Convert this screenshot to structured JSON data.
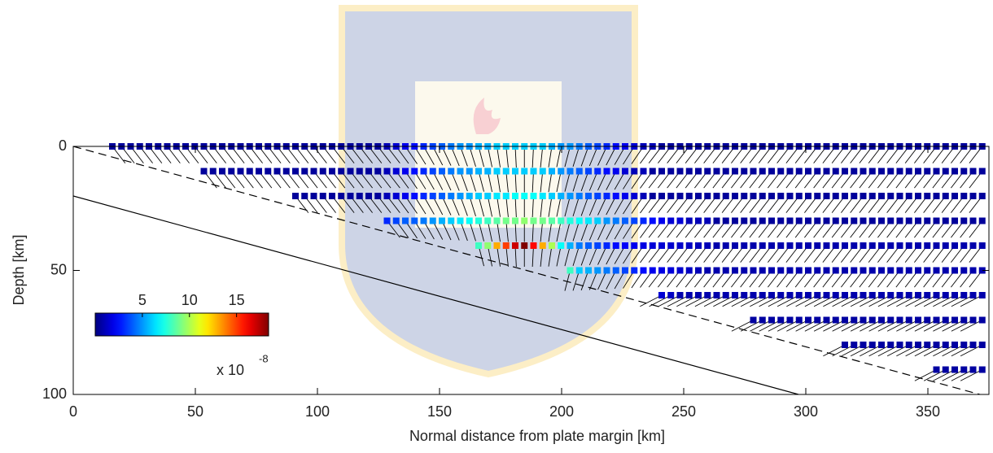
{
  "chart_data": {
    "type": "scatter",
    "xlabel": "Normal distance from plate margin [km]",
    "ylabel": "Depth [km]",
    "xlim": [
      0,
      375
    ],
    "ylim": [
      0,
      100
    ],
    "xticks": [
      0,
      50,
      100,
      150,
      200,
      250,
      300,
      350
    ],
    "yticks": [
      0,
      50,
      100
    ],
    "clim": [
      0,
      18.4
    ],
    "colorbar_ticks": [
      5,
      10,
      15
    ],
    "colorbar_label": "x 10",
    "colorbar_exponent": "-8",
    "lines": [
      {
        "style": "dashed",
        "x": [
          0,
          375
        ],
        "y": [
          0,
          101
        ]
      },
      {
        "style": "solid",
        "x": [
          0,
          297
        ],
        "y": [
          20,
          100
        ]
      }
    ],
    "rows": [
      {
        "depth": 0,
        "x0": 16,
        "dx": 3.75,
        "values": [
          0.5,
          0.5,
          0.5,
          0.5,
          0.5,
          0.5,
          0.5,
          0.5,
          0.5,
          0.5,
          0.5,
          0.5,
          0.5,
          0.5,
          0.5,
          0.5,
          0.5,
          0.5,
          0.5,
          0.5,
          0.5,
          0.5,
          0.5,
          0.5,
          0.5,
          0.5,
          0.5,
          0.5,
          0.5,
          0.5,
          1,
          1.5,
          2,
          2.5,
          3,
          3.5,
          4,
          4.5,
          5,
          5,
          5.5,
          5.5,
          6,
          6,
          6,
          6,
          6,
          6,
          5.5,
          5,
          5,
          4.5,
          4,
          3.5,
          3,
          2.5,
          2,
          1.5,
          1,
          1,
          0.5,
          0.5,
          0.5,
          0.5,
          0.5,
          0.5,
          0.5,
          0.5,
          0.5,
          0.5,
          0.5,
          0.5,
          0.5,
          0.5,
          0.5,
          0.5,
          0.5,
          0.5,
          0.5,
          0.5,
          0.5,
          0.5,
          0.5,
          0.5,
          0.5,
          0.5,
          0.5,
          0.5,
          0.5,
          0.5,
          0.5,
          0.5,
          0.5,
          0.5,
          0.5,
          0.5
        ]
      },
      {
        "depth": 10,
        "x0": 53.5,
        "dx": 3.75,
        "values": [
          0.5,
          0.5,
          0.5,
          0.5,
          0.5,
          0.5,
          0.5,
          0.5,
          0.5,
          0.5,
          0.5,
          0.5,
          0.5,
          0.5,
          0.5,
          0.5,
          0.5,
          0.5,
          0.5,
          0.5,
          1,
          1.5,
          2,
          2.5,
          3,
          3.5,
          4,
          4.5,
          5,
          5,
          5.5,
          5.5,
          6,
          6,
          6,
          6,
          6,
          6,
          5.5,
          5,
          4.5,
          4,
          3.5,
          3,
          2.5,
          2,
          1.5,
          1,
          1,
          0.5,
          0.5,
          0.5,
          0.5,
          0.5,
          0.5,
          0.5,
          0.5,
          0.5,
          0.5,
          0.5,
          0.5,
          0.5,
          0.5,
          0.5,
          0.5,
          0.5,
          0.5,
          0.5,
          0.5,
          0.5,
          0.5,
          0.5,
          0.5,
          0.5,
          0.5,
          0.5,
          0.5,
          0.5,
          0.5,
          0.5,
          0.5,
          0.5,
          0.5,
          0.5,
          0.5,
          0.5
        ]
      },
      {
        "depth": 20,
        "x0": 91,
        "dx": 3.75,
        "values": [
          0.5,
          0.5,
          0.5,
          0.5,
          0.5,
          0.5,
          0.5,
          0.5,
          0.5,
          0.5,
          1,
          1.5,
          2,
          2.5,
          3,
          3.5,
          4,
          4.5,
          5,
          5.5,
          6,
          6,
          6.5,
          6.5,
          7,
          7,
          7,
          6.5,
          6,
          5.5,
          5,
          4.5,
          4,
          3.5,
          3,
          2.5,
          2,
          1.5,
          1,
          0.5,
          0.5,
          0.5,
          0.5,
          0.5,
          0.5,
          0.5,
          0.5,
          0.5,
          0.5,
          0.5,
          0.5,
          0.5,
          0.5,
          0.5,
          0.5,
          0.5,
          0.5,
          0.5,
          0.5,
          0.5,
          0.5,
          0.5,
          0.5,
          0.5,
          0.5,
          0.5,
          0.5,
          0.5,
          0.5,
          0.5,
          0.5,
          0.5,
          0.5,
          0.5,
          0.5,
          0.5
        ]
      },
      {
        "depth": 30,
        "x0": 128.5,
        "dx": 3.75,
        "values": [
          3,
          3.5,
          4,
          4,
          4.5,
          5,
          5.5,
          6,
          6.5,
          7,
          7.5,
          8,
          8.5,
          9,
          9,
          9.5,
          9,
          9,
          8.5,
          8,
          7.5,
          7,
          6.5,
          6,
          5,
          4.5,
          4,
          3.5,
          3,
          2.5,
          2,
          1.5,
          1.5,
          1,
          1,
          1,
          0.5,
          0.5,
          0.5,
          0.5,
          0.5,
          0.5,
          0.5,
          0.5,
          0.5,
          0.5,
          0.5,
          0.5,
          0.5,
          0.5,
          0.5,
          0.5,
          0.5,
          0.5,
          0.5,
          0.5,
          0.5,
          0.5,
          0.5,
          0.5,
          0.5,
          0.5,
          0.5,
          0.5,
          0.5,
          0.5
        ]
      },
      {
        "depth": 40,
        "x0": 166,
        "dx": 3.75,
        "values": [
          8,
          9.5,
          13,
          15,
          17,
          18.4,
          16,
          13,
          10,
          7,
          5.5,
          4.5,
          4,
          3.5,
          3,
          2.5,
          2.2,
          2,
          1.8,
          1.6,
          1.5,
          1.4,
          1.3,
          1.2,
          1.1,
          1,
          0.8,
          0.8,
          0.8,
          0.8,
          0.8,
          0.8,
          0.8,
          0.8,
          0.8,
          0.8,
          0.8,
          0.8,
          0.8,
          0.8,
          0.8,
          0.8,
          0.8,
          0.8,
          0.8,
          0.8,
          0.8,
          0.8,
          0.8,
          0.8,
          0.8,
          0.8,
          0.8,
          0.8,
          0.8,
          0.8
        ]
      },
      {
        "depth": 50,
        "x0": 203.5,
        "dx": 3.75,
        "values": [
          8,
          6,
          5.5,
          5,
          4.5,
          4,
          3.5,
          3,
          2.5,
          2,
          1.8,
          1.6,
          1.4,
          1.2,
          1,
          0.8,
          0.8,
          0.8,
          0.8,
          0.8,
          0.8,
          0.8,
          0.8,
          0.8,
          0.8,
          0.8,
          0.8,
          0.8,
          0.8,
          0.8,
          0.8,
          0.8,
          0.8,
          0.8,
          0.8,
          0.8,
          0.8,
          0.8,
          0.8,
          0.8,
          0.8,
          0.8,
          0.8,
          0.8,
          0.8,
          0.8
        ]
      },
      {
        "depth": 60,
        "x0": 241,
        "dx": 3.75,
        "values": [
          1.5,
          1.2,
          0.8,
          0.8,
          0.8,
          0.8,
          0.8,
          0.8,
          0.8,
          0.8,
          0.8,
          0.8,
          0.8,
          0.8,
          0.8,
          0.8,
          0.8,
          0.8,
          0.8,
          0.8,
          0.8,
          0.8,
          0.8,
          0.8,
          0.8,
          0.8,
          0.8,
          0.8,
          0.8,
          0.8,
          0.8,
          0.8,
          0.8,
          0.8,
          0.8,
          0.8
        ]
      },
      {
        "depth": 70,
        "x0": 278.5,
        "dx": 3.75,
        "values": [
          0.6,
          0.6,
          0.6,
          0.6,
          0.6,
          0.6,
          0.6,
          0.6,
          0.6,
          0.6,
          0.6,
          0.6,
          0.6,
          0.6,
          0.6,
          0.6,
          0.6,
          0.6,
          0.6,
          0.6,
          0.6,
          0.6,
          0.6,
          0.6,
          0.6,
          0.6
        ]
      },
      {
        "depth": 80,
        "x0": 316,
        "dx": 3.75,
        "values": [
          0.6,
          0.6,
          0.6,
          0.6,
          0.6,
          0.6,
          0.6,
          0.6,
          0.6,
          0.6,
          0.6,
          0.6,
          0.6,
          0.6,
          0.6,
          0.6
        ]
      },
      {
        "depth": 90,
        "x0": 353.5,
        "dx": 3.75,
        "values": [
          0.6,
          0.6,
          0.6,
          0.6,
          0.6,
          0.6
        ]
      }
    ]
  }
}
